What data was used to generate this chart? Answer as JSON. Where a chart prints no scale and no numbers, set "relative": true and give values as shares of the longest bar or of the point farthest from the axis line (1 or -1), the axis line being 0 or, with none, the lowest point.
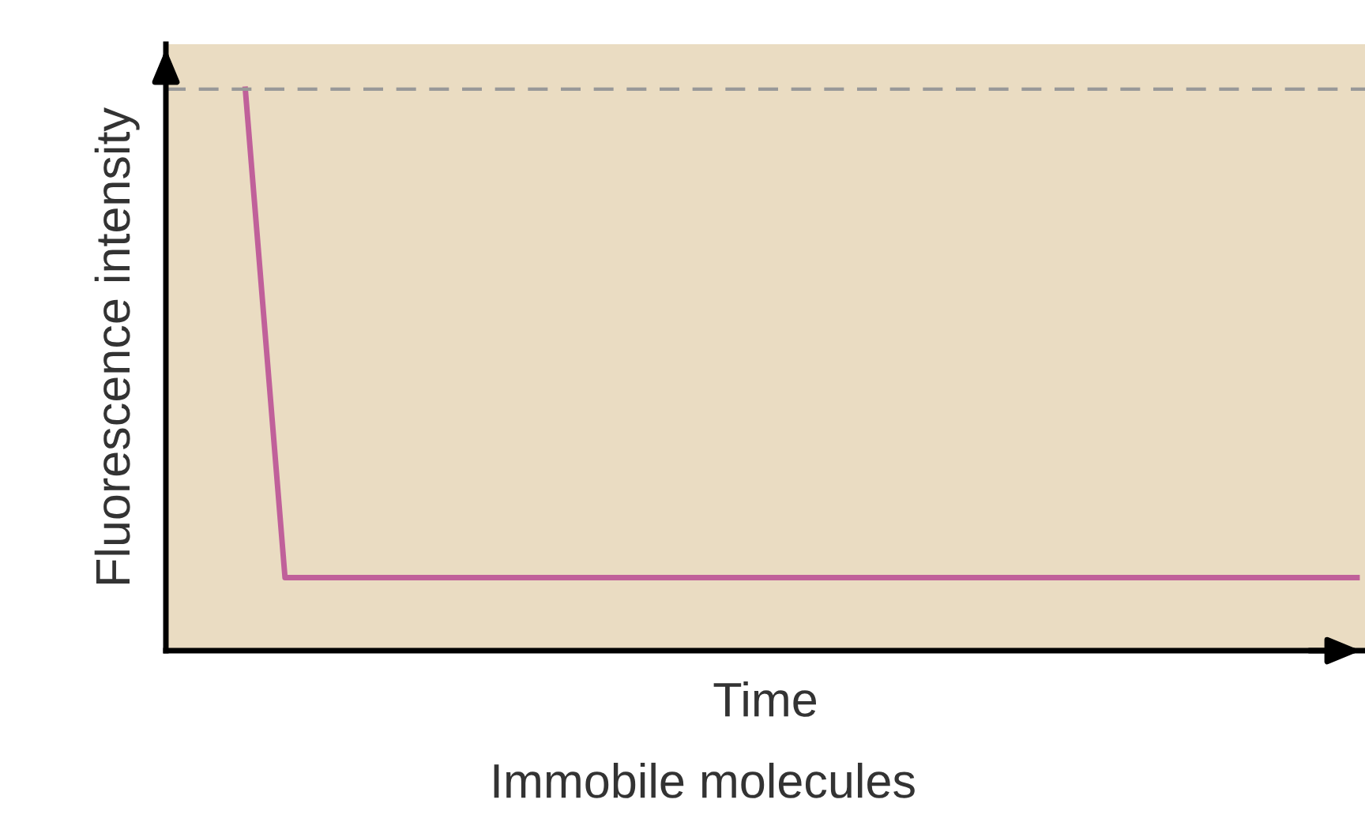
{
  "chart_data": {
    "type": "line",
    "relative": true,
    "xlabel": "Time",
    "ylabel": "Fluorescence intensity",
    "categories": [
      null,
      null,
      null,
      null,
      null,
      null,
      null,
      null,
      null,
      null,
      null,
      null,
      null,
      null,
      null,
      null,
      null,
      null,
      null,
      null,
      null,
      null,
      null,
      null,
      null,
      null,
      null,
      null,
      null,
      null,
      null
    ],
    "series": [
      {
        "color": "#c0609a",
        "values": [
          null,
          null,
          1,
          0.13,
          0.13,
          0.13,
          0.13,
          0.13,
          0.13,
          0.13,
          0.13,
          0.13,
          0.13,
          0.13,
          0.13,
          0.13,
          0.13,
          0.13,
          0.13,
          0.13,
          0.13,
          0.13,
          0.13,
          0.13,
          0.13,
          0.13,
          0.13,
          0.13,
          0.13,
          0.13,
          0.13
        ]
      }
    ],
    "ref_lines": [
      {
        "axis": "y",
        "value": 1,
        "color": "#999999",
        "line_style": "dashed"
      }
    ],
    "annotations": [
      "Immobile molecules"
    ],
    "marker": "none",
    "line_style": "solid",
    "grid": false,
    "legend": false,
    "tick_labels": false
  }
}
